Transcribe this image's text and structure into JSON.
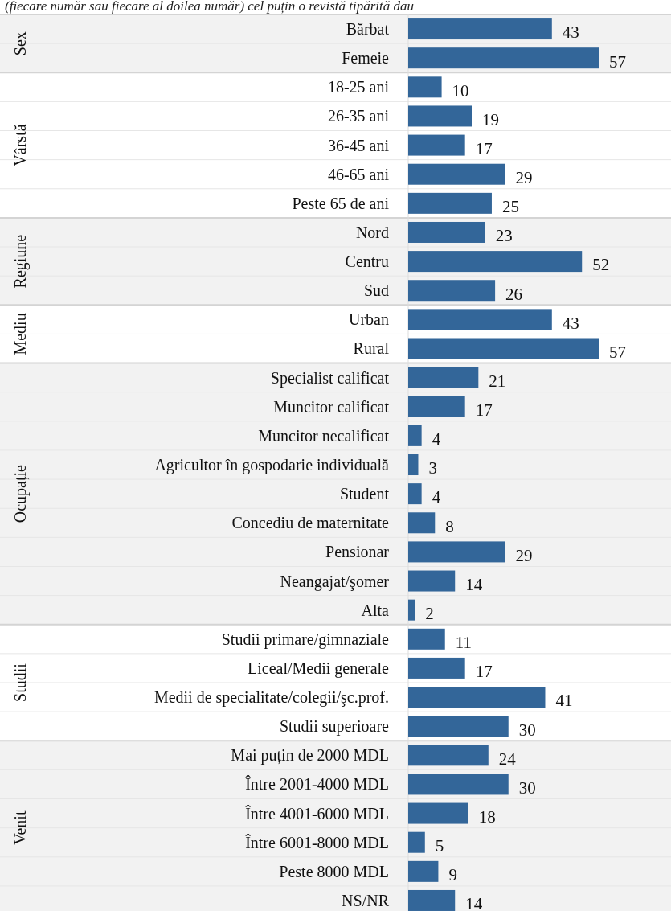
{
  "chart_data": {
    "type": "bar",
    "orientation": "horizontal",
    "subtitle": "(fiecare număr sau fiecare al doilea număr) cel puțin o revistă tipărită dau",
    "categories": [
      "Bărbat",
      "Femeie",
      "18-25 ani",
      "26-35 ani",
      "36-45 ani",
      "46-65 ani",
      "Peste 65 de ani",
      "Nord",
      "Centru",
      "Sud",
      "Urban",
      "Rural",
      "Specialist calificat",
      "Muncitor calificat",
      "Muncitor necalificat",
      "Agricultor în gospodarie individuală",
      "Student",
      "Concediu de maternitate",
      "Pensionar",
      "Neangajat/şomer",
      "Alta",
      "Studii primare/gimnaziale",
      "Liceal/Medii generale",
      "Medii de specialitate/colegii/şc.prof.",
      "Studii superioare",
      "Mai puțin de 2000 MDL",
      "Între 2001-4000 MDL",
      "Între 4001-6000 MDL",
      "Între 6001-8000 MDL",
      "Peste 8000 MDL",
      "NS/NR"
    ],
    "values": [
      43,
      57,
      10,
      19,
      17,
      29,
      25,
      23,
      52,
      26,
      43,
      57,
      21,
      17,
      4,
      3,
      4,
      8,
      29,
      14,
      2,
      11,
      17,
      41,
      30,
      24,
      30,
      18,
      5,
      9,
      14
    ],
    "color": "#336699",
    "data_labels": true,
    "bands": [
      {
        "axis": "y",
        "from": "Bărbat",
        "to": "Femeie",
        "color": "#f2f2f2"
      },
      {
        "axis": "y",
        "from": "Nord",
        "to": "Sud",
        "color": "#f2f2f2"
      },
      {
        "axis": "y",
        "from": "Specialist calificat",
        "to": "Alta",
        "color": "#f2f2f2"
      },
      {
        "axis": "y",
        "from": "Mai puțin de 2000 MDL",
        "to": "NS/NR",
        "color": "#f2f2f2"
      }
    ],
    "annotations": [
      "Sex",
      "Vârstă",
      "Regiune",
      "Mediu",
      "Ocupație",
      "Studii",
      "Venit"
    ]
  }
}
